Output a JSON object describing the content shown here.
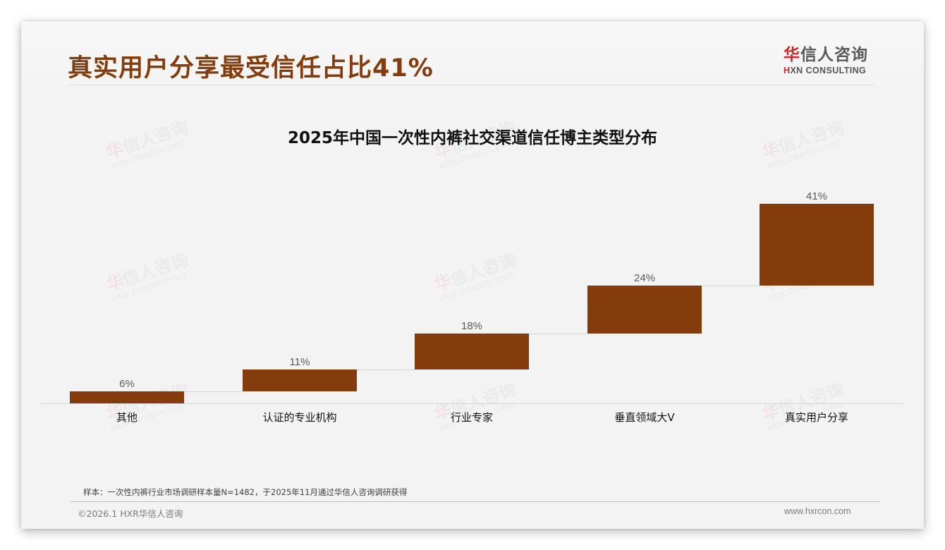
{
  "header": {
    "headline": "真实用户分享最受信任占比41%",
    "logo": {
      "cn_first": "华",
      "cn_rest": "信人咨询",
      "en_first": "H",
      "en_rest": "XN CONSULTING"
    }
  },
  "watermark": {
    "cn_first": "华",
    "cn_rest": "信人咨询",
    "en": "HXN CONSULTING"
  },
  "chart_data": {
    "type": "bar",
    "subtype": "waterfall",
    "title": "2025年中国一次性内裤社交渠道信任博主类型分布",
    "categories": [
      "其他",
      "认证的专业机构",
      "行业专家",
      "垂直领域大V",
      "真实用户分享"
    ],
    "values": [
      6,
      11,
      18,
      24,
      41
    ],
    "value_labels": [
      "6%",
      "11%",
      "18%",
      "24%",
      "41%"
    ],
    "cumulative_start": [
      0,
      6,
      17,
      35,
      59
    ],
    "cumulative_end": [
      6,
      17,
      35,
      59,
      100
    ],
    "unit": "%",
    "xlabel": "",
    "ylabel": "",
    "ylim": [
      0,
      100
    ],
    "grid": false,
    "legend": null,
    "bar_color": "#843c0c"
  },
  "footer": {
    "note": "样本：一次性内裤行业市场调研样本量N=1482，于2025年11月通过华信人咨询调研获得",
    "copyright": "©2026.1 HXR华信人咨询",
    "website": "www.hxrcon.com"
  }
}
